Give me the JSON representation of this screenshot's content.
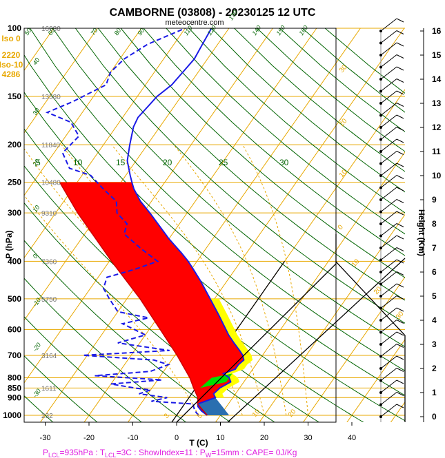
{
  "title": "CAMBORNE (03808) - 20230125 12 UTC",
  "source": "meteocentre.com",
  "iso_labels": [
    "Iso 0",
    "2220",
    "Iso-10",
    "4286"
  ],
  "footer": {
    "p_lcl": "=935hPa",
    "t_lcl": "=3C",
    "show": "ShowIndex=11",
    "p_w": "=15mm",
    "cape": "CAPE= 0J/Kg"
  },
  "colors": {
    "isobar": "#e8a800",
    "dry_adiabat": "#006400",
    "temperature": "#1a1ae6",
    "dewpoint": "#1a1ae6",
    "parcel_red": "#ff0000",
    "parcel_yellow": "#ffff00",
    "cape_green": "#00e000",
    "frame": "#000000",
    "footer": "#e020e0"
  },
  "chart_data": {
    "type": "skew-t log-p",
    "xlabel": "T (C)",
    "ylabel": "P (hPa)",
    "right_label": "Height (Km)",
    "x_ticks": [
      -30,
      -20,
      -10,
      0,
      10,
      20,
      30,
      40
    ],
    "p_ticks": [
      100,
      150,
      200,
      250,
      300,
      400,
      500,
      600,
      700,
      800,
      850,
      900,
      1000
    ],
    "height_ticks": [
      0,
      1,
      2,
      3,
      4,
      5,
      6,
      7,
      8,
      9,
      10,
      11,
      12,
      13,
      14,
      15,
      16
    ],
    "geopotential_labels": [
      {
        "p": 100,
        "text": "16080"
      },
      {
        "p": 150,
        "text": "13580"
      },
      {
        "p": 200,
        "text": "11840"
      },
      {
        "p": 250,
        "text": "10480"
      },
      {
        "p": 300,
        "text": "9310"
      },
      {
        "p": 400,
        "text": "7360"
      },
      {
        "p": 500,
        "text": "5750"
      },
      {
        "p": 700,
        "text": "3164"
      },
      {
        "p": 850,
        "text": "1611"
      },
      {
        "p": 1000,
        "text": "232"
      }
    ],
    "dry_adiabat_labels": [
      {
        "text": "50",
        "x": 40,
        "y": 52
      },
      {
        "text": "60",
        "x": 74,
        "y": 52
      },
      {
        "text": "70",
        "x": 136,
        "y": 52
      },
      {
        "text": "80",
        "x": 170,
        "y": 52
      },
      {
        "text": "90",
        "x": 204,
        "y": 52
      },
      {
        "text": "110",
        "x": 271,
        "y": 52
      },
      {
        "text": "120",
        "x": 305,
        "y": 52
      },
      {
        "text": "130",
        "x": 336,
        "y": 30
      },
      {
        "text": "140",
        "x": 370,
        "y": 52
      },
      {
        "text": "150",
        "x": 405,
        "y": 52
      },
      {
        "text": "160",
        "x": 438,
        "y": 52
      },
      {
        "text": "40",
        "x": 52,
        "y": 95
      },
      {
        "text": "30",
        "x": 52,
        "y": 168
      },
      {
        "text": "20",
        "x": 52,
        "y": 242
      },
      {
        "text": "10",
        "x": 52,
        "y": 309
      },
      {
        "text": "0",
        "x": 52,
        "y": 376
      },
      {
        "text": "-10",
        "x": 52,
        "y": 446
      },
      {
        "text": "-20",
        "x": 52,
        "y": 511
      },
      {
        "text": "-30",
        "x": 52,
        "y": 578
      }
    ],
    "moist_adiabat_labels": [
      {
        "text": "5",
        "x": 52,
        "y": 240
      },
      {
        "text": "10",
        "x": 106,
        "y": 240
      },
      {
        "text": "15",
        "x": 168,
        "y": 240
      },
      {
        "text": "20",
        "x": 236,
        "y": 240
      },
      {
        "text": "25",
        "x": 317,
        "y": 240
      },
      {
        "text": "30",
        "x": 405,
        "y": 240
      }
    ],
    "mixing_ratio_labels": [
      {
        "text": "3",
        "x": 242,
        "y": 608
      },
      {
        "text": "5",
        "x": 290,
        "y": 608
      },
      {
        "text": "10",
        "x": 370,
        "y": 606
      },
      {
        "text": "20",
        "x": 422,
        "y": 606
      },
      {
        "text": "30",
        "x": 496,
        "y": 106
      },
      {
        "text": "20",
        "x": 496,
        "y": 184
      },
      {
        "text": "10",
        "x": 496,
        "y": 258
      },
      {
        "text": "0",
        "x": 494,
        "y": 334
      },
      {
        "text": "10",
        "x": 514,
        "y": 388
      },
      {
        "text": "20",
        "x": 546,
        "y": 428
      },
      {
        "text": "30",
        "x": 578,
        "y": 464
      }
    ],
    "temperature": [
      {
        "p": 1000,
        "t": 7
      },
      {
        "p": 975,
        "t": 5
      },
      {
        "p": 950,
        "t": 3.5
      },
      {
        "p": 935,
        "t": 3
      },
      {
        "p": 900,
        "t": 6
      },
      {
        "p": 880,
        "t": 5
      },
      {
        "p": 850,
        "t": 5.5
      },
      {
        "p": 820,
        "t": 7
      },
      {
        "p": 800,
        "t": 6
      },
      {
        "p": 780,
        "t": 4
      },
      {
        "p": 760,
        "t": 6
      },
      {
        "p": 740,
        "t": 6
      },
      {
        "p": 720,
        "t": 6.5
      },
      {
        "p": 700,
        "t": 5.5
      },
      {
        "p": 680,
        "t": 4
      },
      {
        "p": 650,
        "t": 1.5
      },
      {
        "p": 620,
        "t": -1
      },
      {
        "p": 600,
        "t": -2.5
      },
      {
        "p": 550,
        "t": -6.5
      },
      {
        "p": 500,
        "t": -11
      },
      {
        "p": 450,
        "t": -16
      },
      {
        "p": 420,
        "t": -19.5
      },
      {
        "p": 400,
        "t": -22
      },
      {
        "p": 380,
        "t": -25
      },
      {
        "p": 350,
        "t": -30
      },
      {
        "p": 300,
        "t": -38.5
      },
      {
        "p": 280,
        "t": -42.5
      },
      {
        "p": 260,
        "t": -46
      },
      {
        "p": 250,
        "t": -47.5
      },
      {
        "p": 240,
        "t": -49
      },
      {
        "p": 220,
        "t": -52
      },
      {
        "p": 200,
        "t": -54
      },
      {
        "p": 180,
        "t": -56
      },
      {
        "p": 170,
        "t": -56.5
      },
      {
        "p": 150,
        "t": -55.5
      },
      {
        "p": 140,
        "t": -54
      },
      {
        "p": 130,
        "t": -53.5
      },
      {
        "p": 120,
        "t": -53
      },
      {
        "p": 110,
        "t": -53.5
      },
      {
        "p": 100,
        "t": -54
      }
    ],
    "dewpoint": [
      {
        "p": 1000,
        "t": 5
      },
      {
        "p": 975,
        "t": 3.5
      },
      {
        "p": 950,
        "t": 2.5
      },
      {
        "p": 935,
        "t": 2
      },
      {
        "p": 920,
        "t": -8
      },
      {
        "p": 900,
        "t": -5
      },
      {
        "p": 880,
        "t": -12
      },
      {
        "p": 860,
        "t": -10
      },
      {
        "p": 850,
        "t": -14
      },
      {
        "p": 830,
        "t": -20
      },
      {
        "p": 810,
        "t": -9
      },
      {
        "p": 790,
        "t": -25
      },
      {
        "p": 770,
        "t": -13
      },
      {
        "p": 740,
        "t": -10
      },
      {
        "p": 720,
        "t": -14
      },
      {
        "p": 700,
        "t": -31
      },
      {
        "p": 680,
        "t": -12
      },
      {
        "p": 650,
        "t": -25
      },
      {
        "p": 620,
        "t": -20
      },
      {
        "p": 580,
        "t": -27
      },
      {
        "p": 560,
        "t": -22
      },
      {
        "p": 540,
        "t": -30
      },
      {
        "p": 500,
        "t": -34
      },
      {
        "p": 470,
        "t": -37
      },
      {
        "p": 440,
        "t": -38
      },
      {
        "p": 420,
        "t": -33
      },
      {
        "p": 400,
        "t": -29
      },
      {
        "p": 370,
        "t": -35
      },
      {
        "p": 340,
        "t": -41
      },
      {
        "p": 320,
        "t": -42
      },
      {
        "p": 300,
        "t": -46
      },
      {
        "p": 280,
        "t": -48
      },
      {
        "p": 260,
        "t": -53
      },
      {
        "p": 240,
        "t": -58
      },
      {
        "p": 230,
        "t": -64
      },
      {
        "p": 210,
        "t": -68
      },
      {
        "p": 190,
        "t": -67
      },
      {
        "p": 175,
        "t": -71
      },
      {
        "p": 165,
        "t": -78
      },
      {
        "p": 155,
        "t": -74
      },
      {
        "p": 140,
        "t": -69
      },
      {
        "p": 130,
        "t": -70
      },
      {
        "p": 120,
        "t": -69
      },
      {
        "p": 110,
        "t": -66
      },
      {
        "p": 100,
        "t": -60
      }
    ],
    "parcel": [
      {
        "p": 1000,
        "t": 7
      },
      {
        "p": 935,
        "t": 3
      },
      {
        "p": 900,
        "t": 2
      },
      {
        "p": 850,
        "t": -0.5
      },
      {
        "p": 800,
        "t": -3
      },
      {
        "p": 700,
        "t": -9.5
      },
      {
        "p": 600,
        "t": -17.5
      },
      {
        "p": 500,
        "t": -27
      },
      {
        "p": 400,
        "t": -39.5
      },
      {
        "p": 300,
        "t": -55
      },
      {
        "p": 250,
        "t": -64
      }
    ],
    "wind_heights": [
      0,
      0.5,
      1,
      1.5,
      2,
      2.5,
      3,
      3.5,
      4,
      4.5,
      5,
      5.5,
      6,
      6.5,
      7,
      7.5,
      8,
      8.5,
      9,
      9.5,
      10,
      10.5,
      11,
      11.5,
      12,
      12.5,
      13,
      13.5,
      14,
      14.5,
      15,
      15.5,
      16
    ]
  }
}
